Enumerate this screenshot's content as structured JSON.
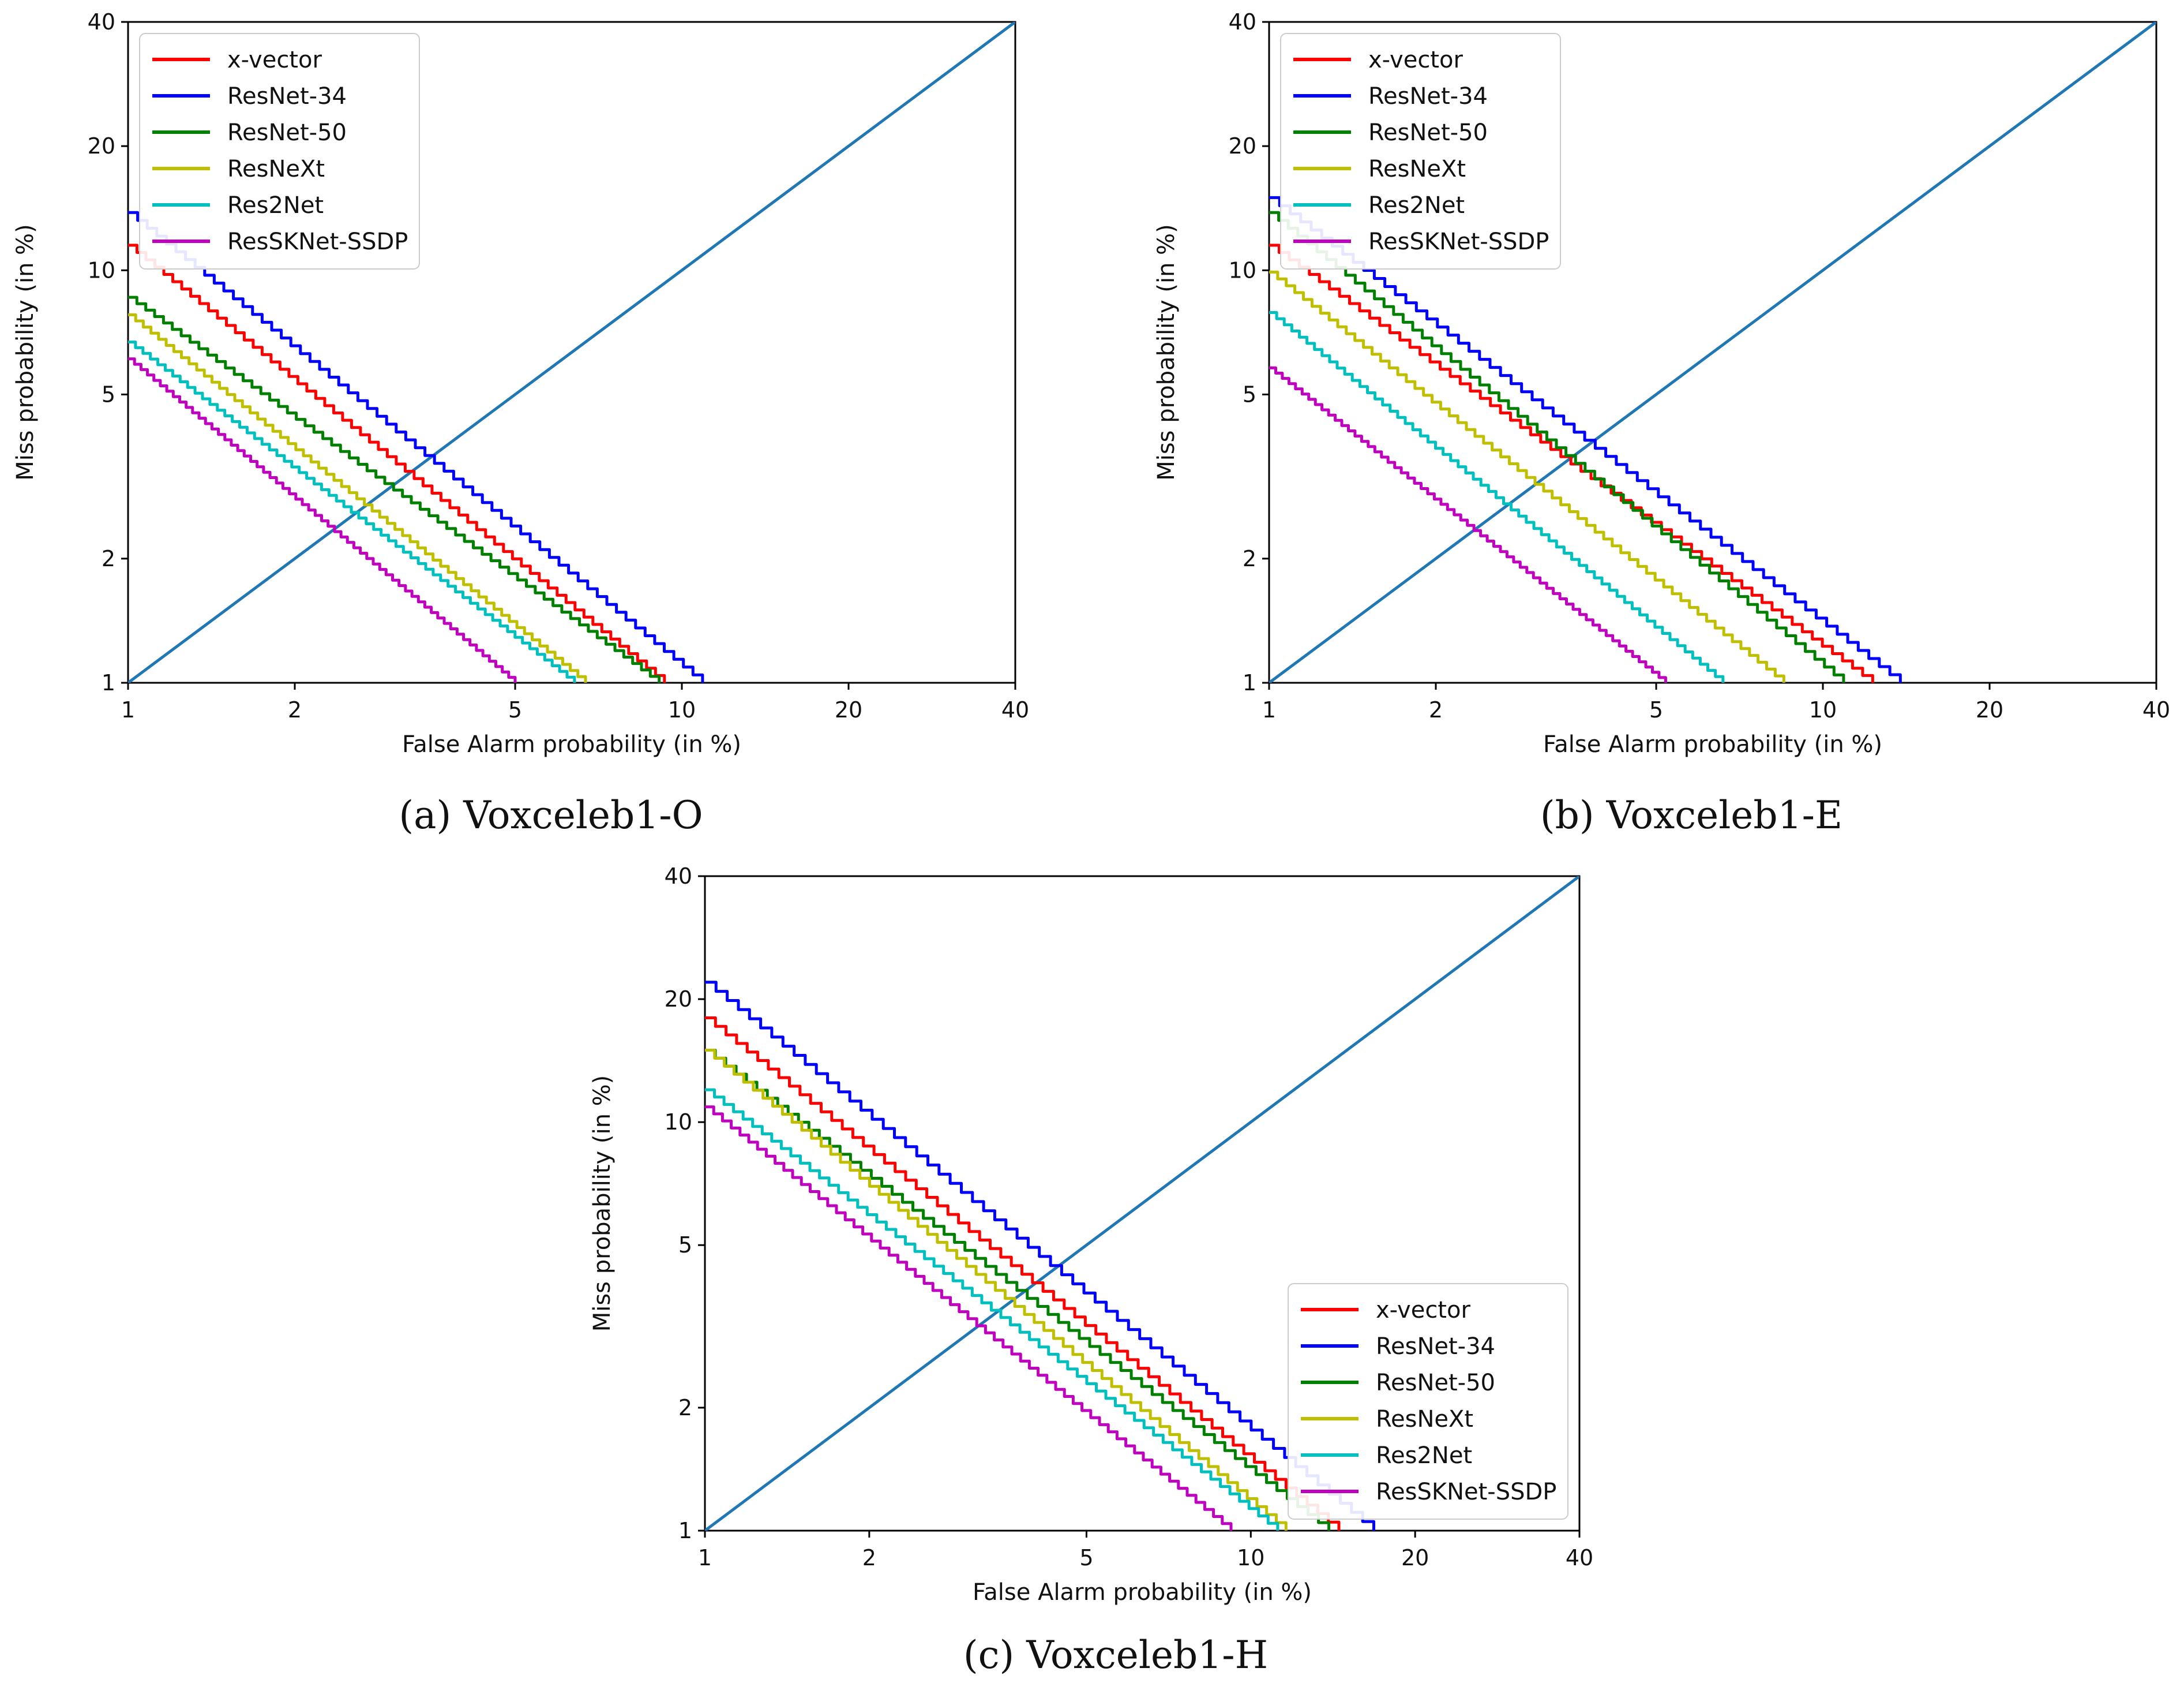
{
  "figure": {
    "captions": [
      "(a) Voxceleb1-O",
      "(b) Voxceleb1-E",
      "(c) Voxceleb1-H"
    ]
  },
  "colors": {
    "x-vector": "#ff0000",
    "ResNet-34": "#0000ff",
    "ResNet-50": "#008000",
    "ResNeXt": "#bfbf00",
    "Res2Net": "#00bfbf",
    "ResSKNet-SSDP": "#bf00bf",
    "diagonal": "#1f77b4"
  },
  "chart_data": [
    {
      "type": "line",
      "title": "",
      "caption": "(a) Voxceleb1-O",
      "xlabel": "False Alarm probability (in %)",
      "ylabel": "Miss probability (in %)",
      "xscale": "log",
      "yscale": "log",
      "xlim": [
        1,
        40
      ],
      "ylim": [
        1,
        40
      ],
      "xticks": [
        1,
        2,
        5,
        10,
        20,
        40
      ],
      "yticks": [
        1,
        2,
        5,
        10,
        20,
        40
      ],
      "legend": "top-left",
      "diagonal": [
        [
          1,
          1
        ],
        [
          40,
          40
        ]
      ],
      "series": [
        {
          "name": "x-vector",
          "x": [
            1,
            9.3
          ],
          "y": [
            11.5,
            1
          ]
        },
        {
          "name": "ResNet-34",
          "x": [
            1,
            10.9
          ],
          "y": [
            13.8,
            1
          ]
        },
        {
          "name": "ResNet-50",
          "x": [
            1,
            9.1
          ],
          "y": [
            8.6,
            1
          ]
        },
        {
          "name": "ResNeXt",
          "x": [
            1,
            6.7
          ],
          "y": [
            7.8,
            1
          ]
        },
        {
          "name": "Res2Net",
          "x": [
            1,
            6.4
          ],
          "y": [
            6.7,
            1
          ]
        },
        {
          "name": "ResSKNet-SSDP",
          "x": [
            1,
            5.0
          ],
          "y": [
            6.1,
            1
          ]
        }
      ]
    },
    {
      "type": "line",
      "title": "",
      "caption": "(b) Voxceleb1-E",
      "xlabel": "False Alarm probability (in %)",
      "ylabel": "Miss probability (in %)",
      "xscale": "log",
      "yscale": "log",
      "xlim": [
        1,
        40
      ],
      "ylim": [
        1,
        40
      ],
      "xticks": [
        1,
        2,
        5,
        10,
        20,
        40
      ],
      "yticks": [
        1,
        2,
        5,
        10,
        20,
        40
      ],
      "legend": "top-left",
      "diagonal": [
        [
          1,
          1
        ],
        [
          40,
          40
        ]
      ],
      "series": [
        {
          "name": "x-vector",
          "x": [
            1,
            12.3
          ],
          "y": [
            11.5,
            1
          ]
        },
        {
          "name": "ResNet-34",
          "x": [
            1,
            13.8
          ],
          "y": [
            15.0,
            1
          ]
        },
        {
          "name": "ResNet-50",
          "x": [
            1,
            10.9
          ],
          "y": [
            13.8,
            1
          ]
        },
        {
          "name": "ResNeXt",
          "x": [
            1,
            8.5
          ],
          "y": [
            9.9,
            1
          ]
        },
        {
          "name": "Res2Net",
          "x": [
            1,
            6.6
          ],
          "y": [
            7.9,
            1
          ]
        },
        {
          "name": "ResSKNet-SSDP",
          "x": [
            1,
            5.2
          ],
          "y": [
            5.8,
            1
          ]
        }
      ]
    },
    {
      "type": "line",
      "title": "",
      "caption": "(c) Voxceleb1-H",
      "xlabel": "False Alarm probability (in %)",
      "ylabel": "Miss probability (in %)",
      "xscale": "log",
      "yscale": "log",
      "xlim": [
        1,
        40
      ],
      "ylim": [
        1,
        40
      ],
      "xticks": [
        1,
        2,
        5,
        10,
        20,
        40
      ],
      "yticks": [
        1,
        2,
        5,
        10,
        20,
        40
      ],
      "legend": "bottom-right",
      "diagonal": [
        [
          1,
          1
        ],
        [
          40,
          40
        ]
      ],
      "series": [
        {
          "name": "x-vector",
          "x": [
            1,
            14.5
          ],
          "y": [
            18.0,
            1
          ]
        },
        {
          "name": "ResNet-34",
          "x": [
            1,
            16.8
          ],
          "y": [
            22.0,
            1
          ]
        },
        {
          "name": "ResNet-50",
          "x": [
            1,
            13.9
          ],
          "y": [
            15.0,
            1
          ]
        },
        {
          "name": "ResNeXt",
          "x": [
            1,
            11.6
          ],
          "y": [
            15.0,
            1
          ]
        },
        {
          "name": "Res2Net",
          "x": [
            1,
            11.2
          ],
          "y": [
            12.0,
            1
          ]
        },
        {
          "name": "ResSKNet-SSDP",
          "x": [
            1,
            9.2
          ],
          "y": [
            10.9,
            1
          ]
        }
      ]
    }
  ]
}
